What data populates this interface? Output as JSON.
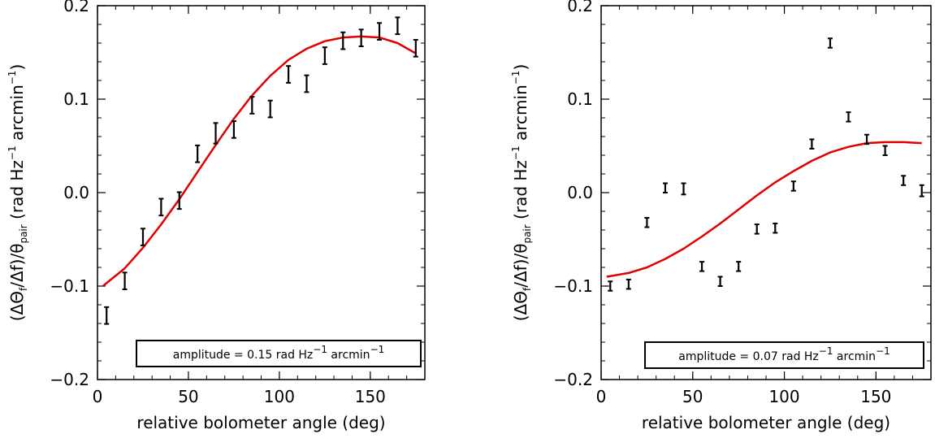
{
  "chart_data": [
    {
      "type": "scatter",
      "xlabel": "relative bolometer angle (deg)",
      "ylabel": {
        "open": "(Δ",
        "theta": "Θ",
        "theta_sub": "f",
        "mid": "/Δf)/θ",
        "pair_sub": "pair",
        "units_a": " (rad Hz",
        "exp_a": "−1",
        "units_b": " arcmin",
        "exp_b": "−1",
        "close": ")"
      },
      "xlim": [
        0,
        180
      ],
      "ylim": [
        -0.2,
        0.2
      ],
      "xticks": [
        0,
        50,
        100,
        150
      ],
      "xtick_labels": [
        "0",
        "50",
        "100",
        "150"
      ],
      "yticks": [
        -0.2,
        -0.1,
        0.0,
        0.1,
        0.2
      ],
      "ytick_labels": [
        "−0.2",
        "−0.1",
        "0.0",
        "0.1",
        "0.2"
      ],
      "x_minor_step": 10,
      "y_minor_step": 0.02,
      "annotation": {
        "prefix": "amplitude = 0.15 rad Hz",
        "exp1": "−1",
        "mid": " arcmin",
        "exp2": "−1"
      },
      "points": [
        {
          "x": 5,
          "y": -0.1315,
          "err": 0.009
        },
        {
          "x": 15,
          "y": -0.0945,
          "err": 0.009
        },
        {
          "x": 25,
          "y": -0.0475,
          "err": 0.009
        },
        {
          "x": 35,
          "y": -0.0155,
          "err": 0.009
        },
        {
          "x": 45,
          "y": -0.0085,
          "err": 0.009
        },
        {
          "x": 55,
          "y": 0.0415,
          "err": 0.009
        },
        {
          "x": 65,
          "y": 0.0635,
          "err": 0.011
        },
        {
          "x": 75,
          "y": 0.0675,
          "err": 0.009
        },
        {
          "x": 85,
          "y": 0.0935,
          "err": 0.009
        },
        {
          "x": 95,
          "y": 0.0895,
          "err": 0.009
        },
        {
          "x": 105,
          "y": 0.1265,
          "err": 0.009
        },
        {
          "x": 115,
          "y": 0.1165,
          "err": 0.009
        },
        {
          "x": 125,
          "y": 0.1465,
          "err": 0.009
        },
        {
          "x": 135,
          "y": 0.1625,
          "err": 0.009
        },
        {
          "x": 145,
          "y": 0.1655,
          "err": 0.009
        },
        {
          "x": 155,
          "y": 0.1725,
          "err": 0.009
        },
        {
          "x": 165,
          "y": 0.1785,
          "err": 0.009
        },
        {
          "x": 175,
          "y": 0.1545,
          "err": 0.009
        }
      ],
      "fit": {
        "color": "#e00000",
        "x": [
          3,
          15,
          25,
          35,
          45,
          55,
          65,
          75,
          85,
          95,
          105,
          115,
          125,
          135,
          145,
          155,
          165,
          175
        ],
        "y": [
          -0.1,
          -0.081,
          -0.059,
          -0.034,
          -0.007,
          0.022,
          0.051,
          0.079,
          0.104,
          0.125,
          0.142,
          0.154,
          0.162,
          0.166,
          0.167,
          0.166,
          0.16,
          0.149
        ]
      }
    },
    {
      "type": "scatter",
      "xlabel": "relative bolometer angle (deg)",
      "ylabel": {
        "open": "(Δ",
        "theta": "Θ",
        "theta_sub": "f",
        "mid": "/Δf)/θ",
        "pair_sub": "pair",
        "units_a": " (rad Hz",
        "exp_a": "−1",
        "units_b": " arcmin",
        "exp_b": "−1",
        "close": ")"
      },
      "xlim": [
        0,
        180
      ],
      "ylim": [
        -0.2,
        0.2
      ],
      "xticks": [
        0,
        50,
        100,
        150
      ],
      "xtick_labels": [
        "0",
        "50",
        "100",
        "150"
      ],
      "yticks": [
        -0.2,
        -0.1,
        0.0,
        0.1,
        0.2
      ],
      "ytick_labels": [
        "−0.2",
        "−0.1",
        "0.0",
        "0.1",
        "0.2"
      ],
      "x_minor_step": 10,
      "y_minor_step": 0.02,
      "annotation": {
        "prefix": "amplitude = 0.07 rad Hz",
        "exp1": "−1",
        "mid": " arcmin",
        "exp2": "−1"
      },
      "points": [
        {
          "x": 5,
          "y": -0.1,
          "err": 0.005
        },
        {
          "x": 15,
          "y": -0.098,
          "err": 0.005
        },
        {
          "x": 25,
          "y": -0.032,
          "err": 0.005
        },
        {
          "x": 35,
          "y": 0.005,
          "err": 0.005
        },
        {
          "x": 45,
          "y": 0.004,
          "err": 0.006
        },
        {
          "x": 55,
          "y": -0.079,
          "err": 0.005
        },
        {
          "x": 65,
          "y": -0.095,
          "err": 0.005
        },
        {
          "x": 75,
          "y": -0.079,
          "err": 0.005
        },
        {
          "x": 85,
          "y": -0.039,
          "err": 0.005
        },
        {
          "x": 95,
          "y": -0.038,
          "err": 0.005
        },
        {
          "x": 105,
          "y": 0.007,
          "err": 0.005
        },
        {
          "x": 115,
          "y": 0.052,
          "err": 0.005
        },
        {
          "x": 125,
          "y": 0.16,
          "err": 0.005
        },
        {
          "x": 135,
          "y": 0.081,
          "err": 0.005
        },
        {
          "x": 145,
          "y": 0.057,
          "err": 0.005
        },
        {
          "x": 155,
          "y": 0.045,
          "err": 0.005
        },
        {
          "x": 165,
          "y": 0.013,
          "err": 0.005
        },
        {
          "x": 175,
          "y": 0.002,
          "err": 0.006
        }
      ],
      "fit": {
        "color": "#e00000",
        "x": [
          3,
          15,
          25,
          35,
          45,
          55,
          65,
          75,
          85,
          95,
          105,
          115,
          125,
          135,
          145,
          155,
          165,
          175
        ],
        "y": [
          -0.09,
          -0.086,
          -0.08,
          -0.071,
          -0.06,
          -0.047,
          -0.033,
          -0.018,
          -0.003,
          0.011,
          0.023,
          0.034,
          0.043,
          0.049,
          0.053,
          0.054,
          0.054,
          0.053
        ]
      }
    }
  ]
}
